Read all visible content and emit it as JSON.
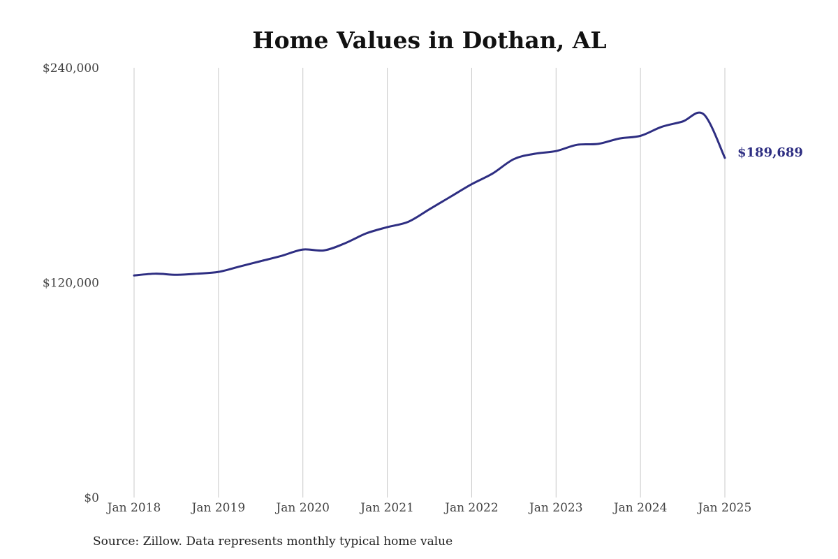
{
  "chart_data": {
    "type": "line",
    "title": "Home Values in Dothan, AL",
    "source": "Source: Zillow. Data represents monthly typical home value",
    "xlabel": "",
    "ylabel": "",
    "ylim": [
      0,
      240000
    ],
    "y_ticks": [
      {
        "value": 0,
        "label": "$0"
      },
      {
        "value": 120000,
        "label": "$120,000"
      },
      {
        "value": 240000,
        "label": "$240,000"
      }
    ],
    "x_ticks": [
      {
        "value": "2018-01",
        "label": "Jan 2018"
      },
      {
        "value": "2019-01",
        "label": "Jan 2019"
      },
      {
        "value": "2020-01",
        "label": "Jan 2020"
      },
      {
        "value": "2021-01",
        "label": "Jan 2021"
      },
      {
        "value": "2022-01",
        "label": "Jan 2022"
      },
      {
        "value": "2023-01",
        "label": "Jan 2023"
      },
      {
        "value": "2024-01",
        "label": "Jan 2024"
      },
      {
        "value": "2025-01",
        "label": "Jan 2025"
      }
    ],
    "grid": {
      "vertical": true,
      "horizontal": false
    },
    "line_color": "#2e2e82",
    "end_label": "$189,689",
    "series": [
      {
        "x": [
          "2018-01",
          "2018-04",
          "2018-07",
          "2018-10",
          "2019-01",
          "2019-04",
          "2019-07",
          "2019-10",
          "2020-01",
          "2020-04",
          "2020-07",
          "2020-10",
          "2021-01",
          "2021-04",
          "2021-07",
          "2021-10",
          "2022-01",
          "2022-04",
          "2022-07",
          "2022-10",
          "2023-01",
          "2023-04",
          "2023-07",
          "2023-10",
          "2024-01",
          "2024-04",
          "2024-07",
          "2024-10",
          "2025-01"
        ],
        "values": [
          124000,
          125000,
          124400,
          125000,
          126000,
          129000,
          132000,
          135000,
          138500,
          138000,
          142000,
          147500,
          151000,
          154000,
          161000,
          168000,
          175000,
          181000,
          189000,
          192000,
          193500,
          197000,
          197500,
          200500,
          202000,
          207000,
          210000,
          214000,
          189689
        ]
      }
    ]
  }
}
